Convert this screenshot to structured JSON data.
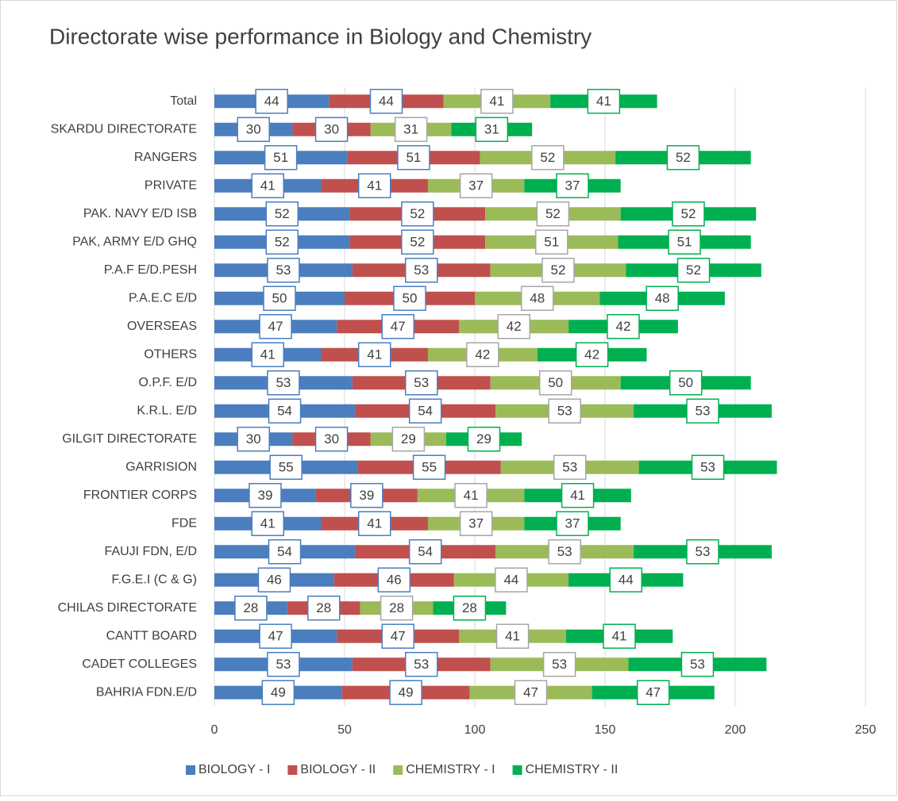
{
  "chart_data": {
    "type": "stacked_barh",
    "title": "Directorate wise performance in Biology and Chemistry",
    "categories": [
      "Total",
      "SKARDU DIRECTORATE",
      "RANGERS",
      "PRIVATE",
      "PAK. NAVY E/D ISB",
      "PAK, ARMY E/D GHQ",
      "P.A.F E/D.PESH",
      "P.A.E.C E/D",
      "OVERSEAS",
      "OTHERS",
      "O.P.F. E/D",
      "K.R.L. E/D",
      "GILGIT DIRECTORATE",
      "GARRISION",
      "FRONTIER CORPS",
      "FDE",
      "FAUJI FDN, E/D",
      "F.G.E.I (C & G)",
      "CHILAS DIRECTORATE",
      "CANTT BOARD",
      "CADET COLLEGES",
      "BAHRIA FDN.E/D"
    ],
    "series": [
      {
        "name": "BIOLOGY - I",
        "color": "#4a7ebf",
        "values": [
          44,
          30,
          51,
          41,
          52,
          52,
          53,
          50,
          47,
          41,
          53,
          54,
          30,
          55,
          39,
          41,
          54,
          46,
          28,
          47,
          53,
          49
        ]
      },
      {
        "name": "BIOLOGY - II",
        "color": "#c0504d",
        "values": [
          44,
          30,
          51,
          41,
          52,
          52,
          53,
          50,
          47,
          41,
          53,
          54,
          30,
          55,
          39,
          41,
          54,
          46,
          28,
          47,
          53,
          49
        ]
      },
      {
        "name": "CHEMISTRY - I",
        "color": "#9bbb59",
        "values": [
          41,
          31,
          52,
          37,
          52,
          51,
          52,
          48,
          42,
          42,
          50,
          53,
          29,
          53,
          41,
          37,
          53,
          44,
          28,
          41,
          53,
          47
        ]
      },
      {
        "name": "CHEMISTRY - II",
        "color": "#00b050",
        "values": [
          41,
          31,
          52,
          37,
          52,
          51,
          52,
          48,
          42,
          42,
          50,
          53,
          29,
          53,
          41,
          37,
          53,
          44,
          28,
          41,
          53,
          47
        ]
      }
    ],
    "xlim": [
      0,
      250
    ],
    "xticks": [
      0,
      50,
      100,
      150,
      200,
      250
    ],
    "grid": true,
    "legend": "bottom"
  }
}
